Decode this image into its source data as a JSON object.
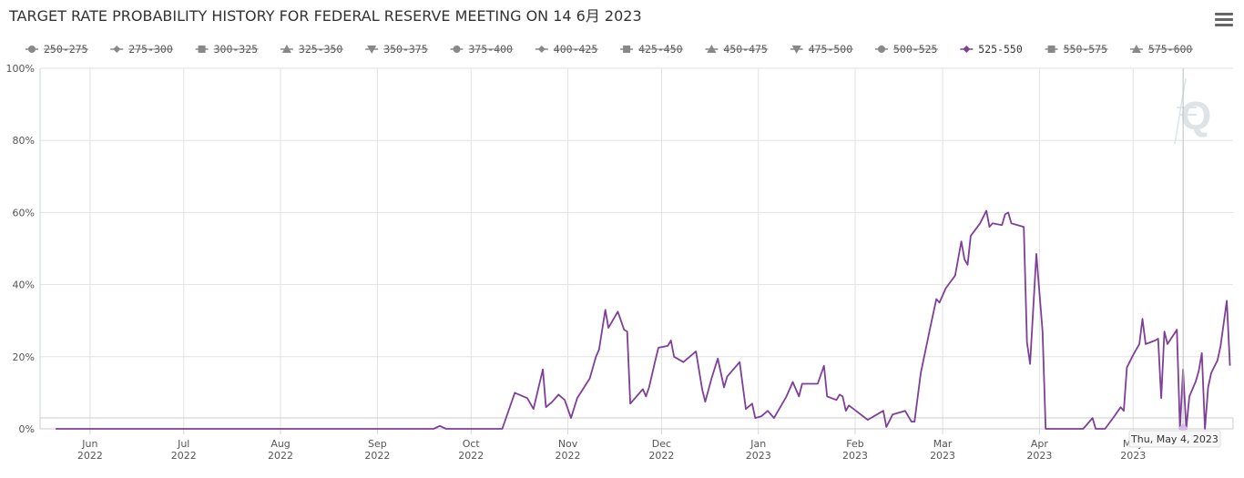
{
  "title": "TARGET RATE PROBABILITY HISTORY FOR FEDERAL RESERVE MEETING ON 14 6月 2023",
  "menu_icon": "hamburger-menu-icon",
  "watermark_text": "Q",
  "tooltip": {
    "label": "Thu, May 4, 2023"
  },
  "colors": {
    "series_active": "#7e3f98",
    "legend_disabled": "#888888",
    "grid": "#e2e2e2"
  },
  "legend": [
    {
      "label": "250-275",
      "symbol": "circle",
      "active": false
    },
    {
      "label": "275-300",
      "symbol": "diamond",
      "active": false
    },
    {
      "label": "300-325",
      "symbol": "square",
      "active": false
    },
    {
      "label": "325-350",
      "symbol": "triangle",
      "active": false
    },
    {
      "label": "350-375",
      "symbol": "triangle-down",
      "active": false
    },
    {
      "label": "375-400",
      "symbol": "circle",
      "active": false
    },
    {
      "label": "400-425",
      "symbol": "diamond",
      "active": false
    },
    {
      "label": "425-450",
      "symbol": "square",
      "active": false
    },
    {
      "label": "450-475",
      "symbol": "triangle",
      "active": false
    },
    {
      "label": "475-500",
      "symbol": "triangle-down",
      "active": false
    },
    {
      "label": "500-525",
      "symbol": "circle",
      "active": false
    },
    {
      "label": "525-550",
      "symbol": "diamond",
      "active": true
    },
    {
      "label": "550-575",
      "symbol": "square",
      "active": false
    },
    {
      "label": "575-600",
      "symbol": "triangle",
      "active": false
    }
  ],
  "chart_data": {
    "type": "line",
    "title": "TARGET RATE PROBABILITY HISTORY FOR FEDERAL RESERVE MEETING ON 14 6月 2023",
    "ylim": [
      0,
      100
    ],
    "xlim": [
      "2022-05-16",
      "2023-06-02"
    ],
    "y_ticks": [
      {
        "value": 0,
        "label": "0%"
      },
      {
        "value": 20,
        "label": "20%"
      },
      {
        "value": 40,
        "label": "40%"
      },
      {
        "value": 60,
        "label": "60%"
      },
      {
        "value": 80,
        "label": "80%"
      },
      {
        "value": 100,
        "label": "100%"
      }
    ],
    "x_ticks": [
      {
        "date": "2022-06-01",
        "month": "Jun",
        "year": "2022"
      },
      {
        "date": "2022-07-01",
        "month": "Jul",
        "year": "2022"
      },
      {
        "date": "2022-08-01",
        "month": "Aug",
        "year": "2022"
      },
      {
        "date": "2022-09-01",
        "month": "Sep",
        "year": "2022"
      },
      {
        "date": "2022-10-01",
        "month": "Oct",
        "year": "2022"
      },
      {
        "date": "2022-11-01",
        "month": "Nov",
        "year": "2022"
      },
      {
        "date": "2022-12-01",
        "month": "Dec",
        "year": "2022"
      },
      {
        "date": "2023-01-01",
        "month": "Jan",
        "year": "2023"
      },
      {
        "date": "2023-02-01",
        "month": "Feb",
        "year": "2023"
      },
      {
        "date": "2023-03-01",
        "month": "Mar",
        "year": "2023"
      },
      {
        "date": "2023-04-01",
        "month": "Apr",
        "year": "2023"
      },
      {
        "date": "2023-05-01",
        "month": "May",
        "year": "2023"
      }
    ],
    "grid": true,
    "legend_position": "top",
    "series": [
      {
        "name": "525-550",
        "color": "#7e3f98",
        "points": [
          [
            "2022-05-21",
            0
          ],
          [
            "2022-09-19",
            0
          ],
          [
            "2022-09-21",
            0.8
          ],
          [
            "2022-09-23",
            0
          ],
          [
            "2022-10-11",
            0
          ],
          [
            "2022-10-15",
            10
          ],
          [
            "2022-10-19",
            8.5
          ],
          [
            "2022-10-21",
            5.5
          ],
          [
            "2022-10-24",
            16.5
          ],
          [
            "2022-10-25",
            6
          ],
          [
            "2022-10-27",
            7.5
          ],
          [
            "2022-10-29",
            9.5
          ],
          [
            "2022-10-31",
            8
          ],
          [
            "2022-11-02",
            3
          ],
          [
            "2022-11-04",
            8.5
          ],
          [
            "2022-11-08",
            14
          ],
          [
            "2022-11-10",
            20
          ],
          [
            "2022-11-11",
            22
          ],
          [
            "2022-11-13",
            33
          ],
          [
            "2022-11-14",
            28
          ],
          [
            "2022-11-17",
            32.5
          ],
          [
            "2022-11-19",
            27.5
          ],
          [
            "2022-11-20",
            27
          ],
          [
            "2022-11-21",
            7
          ],
          [
            "2022-11-22",
            8
          ],
          [
            "2022-11-25",
            11
          ],
          [
            "2022-11-26",
            9
          ],
          [
            "2022-11-27",
            11.5
          ],
          [
            "2022-11-29",
            19
          ],
          [
            "2022-11-30",
            22.5
          ],
          [
            "2022-12-03",
            23
          ],
          [
            "2022-12-04",
            24.5
          ],
          [
            "2022-12-05",
            20
          ],
          [
            "2022-12-08",
            18.5
          ],
          [
            "2022-12-10",
            20
          ],
          [
            "2022-12-12",
            21.5
          ],
          [
            "2022-12-14",
            11
          ],
          [
            "2022-12-15",
            7.5
          ],
          [
            "2022-12-17",
            14
          ],
          [
            "2022-12-19",
            19.5
          ],
          [
            "2022-12-21",
            11.5
          ],
          [
            "2022-12-22",
            14.5
          ],
          [
            "2022-12-26",
            18.5
          ],
          [
            "2022-12-28",
            5.5
          ],
          [
            "2022-12-30",
            7
          ],
          [
            "2022-12-31",
            3
          ],
          [
            "2023-01-02",
            3.5
          ],
          [
            "2023-01-04",
            5
          ],
          [
            "2023-01-06",
            3
          ],
          [
            "2023-01-10",
            9
          ],
          [
            "2023-01-12",
            13
          ],
          [
            "2023-01-14",
            9
          ],
          [
            "2023-01-15",
            12.5
          ],
          [
            "2023-01-20",
            12.5
          ],
          [
            "2023-01-22",
            17.5
          ],
          [
            "2023-01-23",
            9
          ],
          [
            "2023-01-26",
            8
          ],
          [
            "2023-01-27",
            9.5
          ],
          [
            "2023-01-28",
            9
          ],
          [
            "2023-01-29",
            5
          ],
          [
            "2023-01-30",
            6.5
          ],
          [
            "2023-02-02",
            4.5
          ],
          [
            "2023-02-05",
            2.5
          ],
          [
            "2023-02-10",
            5
          ],
          [
            "2023-02-11",
            0.5
          ],
          [
            "2023-02-13",
            4
          ],
          [
            "2023-02-17",
            5
          ],
          [
            "2023-02-19",
            2
          ],
          [
            "2023-02-20",
            2
          ],
          [
            "2023-02-22",
            15.5
          ],
          [
            "2023-02-25",
            28
          ],
          [
            "2023-02-27",
            36
          ],
          [
            "2023-02-28",
            35
          ],
          [
            "2023-03-02",
            39
          ],
          [
            "2023-03-05",
            42.5
          ],
          [
            "2023-03-07",
            52
          ],
          [
            "2023-03-08",
            47
          ],
          [
            "2023-03-09",
            45.5
          ],
          [
            "2023-03-10",
            53.5
          ],
          [
            "2023-03-13",
            57
          ],
          [
            "2023-03-15",
            60.5
          ],
          [
            "2023-03-16",
            56
          ],
          [
            "2023-03-17",
            57
          ],
          [
            "2023-03-20",
            56.5
          ],
          [
            "2023-03-21",
            59.5
          ],
          [
            "2023-03-22",
            60
          ],
          [
            "2023-03-23",
            57
          ],
          [
            "2023-03-27",
            56
          ],
          [
            "2023-03-28",
            24
          ],
          [
            "2023-03-29",
            18
          ],
          [
            "2023-03-31",
            48.5
          ],
          [
            "2023-04-02",
            27
          ],
          [
            "2023-04-03",
            0
          ],
          [
            "2023-04-15",
            0
          ],
          [
            "2023-04-18",
            3
          ],
          [
            "2023-04-19",
            0
          ],
          [
            "2023-04-22",
            0
          ],
          [
            "2023-04-25",
            3.5
          ],
          [
            "2023-04-27",
            6
          ],
          [
            "2023-04-28",
            5
          ],
          [
            "2023-04-29",
            17
          ],
          [
            "2023-05-01",
            20.5
          ],
          [
            "2023-05-03",
            23.5
          ],
          [
            "2023-05-04",
            30.5
          ],
          [
            "2023-05-05",
            23.5
          ],
          [
            "2023-05-08",
            24.5
          ],
          [
            "2023-05-09",
            25
          ],
          [
            "2023-05-10",
            8.5
          ],
          [
            "2023-05-11",
            27
          ],
          [
            "2023-05-12",
            23.5
          ],
          [
            "2023-05-15",
            27.5
          ],
          [
            "2023-05-16",
            0
          ],
          [
            "2023-05-17",
            16.5
          ],
          [
            "2023-05-18",
            0
          ],
          [
            "2023-05-19",
            9
          ],
          [
            "2023-05-21",
            13
          ],
          [
            "2023-05-22",
            16
          ],
          [
            "2023-05-23",
            21
          ],
          [
            "2023-05-24",
            0
          ],
          [
            "2023-05-25",
            11.5
          ],
          [
            "2023-05-26",
            15.5
          ],
          [
            "2023-05-28",
            19
          ],
          [
            "2023-05-29",
            23
          ],
          [
            "2023-05-31",
            35.5
          ],
          [
            "2023-06-01",
            17.5
          ]
        ]
      }
    ]
  }
}
